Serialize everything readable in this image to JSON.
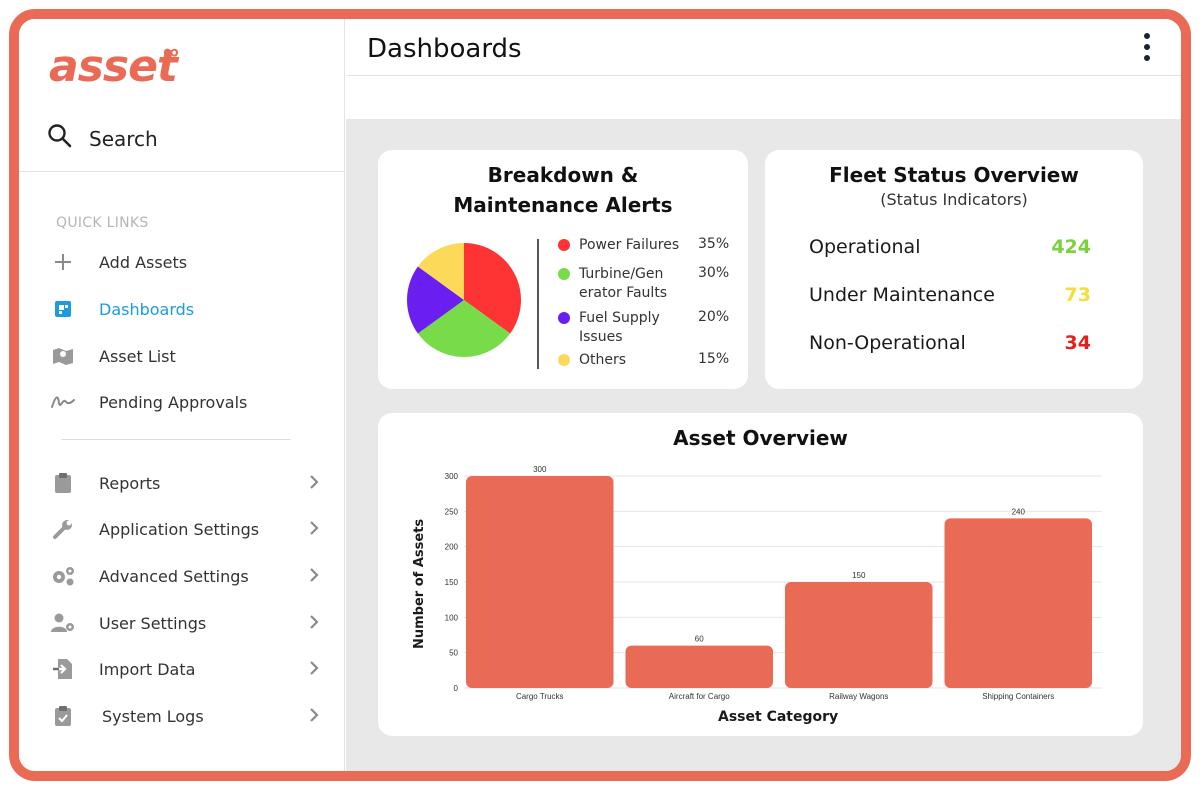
{
  "brand": {
    "logo_text": "asset",
    "logo_mark": "∞",
    "accent": "#ea6b55"
  },
  "sidebar": {
    "search_label": "Search",
    "quick_links_label": "QUICK LINKS",
    "quick_links": [
      {
        "label": "Add Assets",
        "icon": "plus-icon"
      },
      {
        "label": "Dashboards",
        "icon": "dashboard-icon",
        "active": true
      },
      {
        "label": "Asset List",
        "icon": "map-icon"
      },
      {
        "label": "Pending Approvals",
        "icon": "signature-icon"
      }
    ],
    "settings": [
      {
        "label": "Reports",
        "icon": "clipboard-icon"
      },
      {
        "label": "Application Settings",
        "icon": "wrench-icon"
      },
      {
        "label": "Advanced Settings",
        "icon": "gears-icon"
      },
      {
        "label": "User Settings",
        "icon": "user-gear-icon"
      },
      {
        "label": "Import Data",
        "icon": "import-icon"
      },
      {
        "label": "System Logs",
        "icon": "clipboard-check-icon"
      }
    ],
    "active_color": "#1b9be0"
  },
  "header": {
    "title": "Dashboards"
  },
  "alerts_card": {
    "title": "Breakdown & Maintenance Alerts",
    "items": [
      {
        "label": "Power Failures",
        "pct": "35%",
        "color": "#fe3333"
      },
      {
        "label": "Turbine/Generator Faults",
        "pct": "30%",
        "color": "#78db4a"
      },
      {
        "label": "Fuel Supply Issues",
        "pct": "20%",
        "color": "#6a1ff0"
      },
      {
        "label": "Others",
        "pct": "15%",
        "color": "#fcd958"
      }
    ]
  },
  "fleet_card": {
    "title": "Fleet Status Overview",
    "subtitle": "(Status Indicators)",
    "rows": [
      {
        "label": "Operational",
        "value": "424",
        "color": "#7bd23c"
      },
      {
        "label": "Under Maintenance",
        "value": "73",
        "color": "#f0e03a"
      },
      {
        "label": "Non-Operational",
        "value": "34",
        "color": "#e3201b"
      }
    ]
  },
  "chart_data": {
    "type": "bar",
    "title": "Asset Overview",
    "xlabel": "Asset Category",
    "ylabel": "Number of Assets",
    "categories": [
      "Cargo Trucks",
      "Aircraft for Cargo",
      "Railway Wagons",
      "Shipping Containers"
    ],
    "values": [
      300,
      60,
      150,
      240
    ],
    "ylim": [
      0,
      300
    ],
    "yticks": [
      0,
      50,
      100,
      150,
      200,
      250,
      300
    ],
    "grid": true,
    "bar_color": "#ea6b55"
  }
}
